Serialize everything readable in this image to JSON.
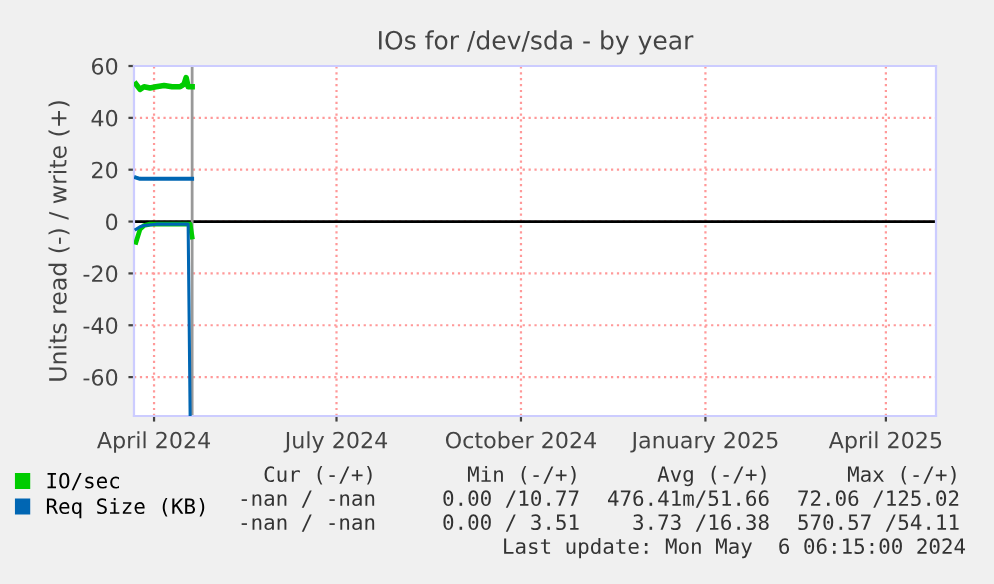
{
  "chart_data": {
    "type": "line",
    "title": "IOs for /dev/sda - by year",
    "ylabel": "Units read (-) / write (+)",
    "xlim": [
      "2024-03-22",
      "2025-04-26"
    ],
    "ylim": [
      -75,
      60
    ],
    "xticks": [
      {
        "value": "2024-04-01",
        "label": "April 2024"
      },
      {
        "value": "2024-07-01",
        "label": "July 2024"
      },
      {
        "value": "2024-10-01",
        "label": "October 2024"
      },
      {
        "value": "2025-01-01",
        "label": "January 2025"
      },
      {
        "value": "2025-04-01",
        "label": "April 2025"
      }
    ],
    "yticks": [
      -60,
      -40,
      -20,
      0,
      20,
      40,
      60
    ],
    "grid": true,
    "legend": "bottom left",
    "line_style": "solid",
    "marker": "none",
    "series": [
      {
        "name": "IO/sec",
        "color": "#00cc00",
        "x": [
          "2024-03-23",
          "2024-03-25",
          "2024-03-27",
          "2024-03-30",
          "2024-04-02",
          "2024-04-06",
          "2024-04-10",
          "2024-04-14",
          "2024-04-16",
          "2024-04-17",
          "2024-04-18",
          "2024-04-20"
        ],
        "values": [
          53,
          51,
          52,
          51.5,
          52,
          52.5,
          52,
          52,
          53,
          55.5,
          52,
          52
        ]
      },
      {
        "color": "#00cc00",
        "x": [
          "2024-03-23",
          "2024-03-25",
          "2024-03-27",
          "2024-03-30",
          "2024-04-02",
          "2024-04-10",
          "2024-04-18",
          "2024-04-19",
          "2024-04-20"
        ],
        "values": [
          -8,
          -3,
          -1.5,
          -1,
          -1,
          -1,
          -1,
          -1,
          -6
        ]
      },
      {
        "name": "Req Size (KB)",
        "color": "#0066b3",
        "x": [
          "2024-03-23",
          "2024-03-25",
          "2024-03-30",
          "2024-04-06",
          "2024-04-12",
          "2024-04-18",
          "2024-04-20"
        ],
        "values": [
          17,
          16.5,
          16.5,
          16.5,
          16.5,
          16.5,
          16.5
        ]
      },
      {
        "color": "#0066b3",
        "x": [
          "2024-03-23",
          "2024-03-25",
          "2024-03-27",
          "2024-04-02",
          "2024-04-10",
          "2024-04-18",
          "2024-04-19"
        ],
        "values": [
          -3,
          -2,
          -1.5,
          -1,
          -1,
          -1,
          -75
        ]
      }
    ],
    "ref_lines": [
      {
        "axis": "y",
        "value": 0,
        "color": "#000000"
      },
      {
        "axis": "x",
        "value": "2024-04-20",
        "color": "#999999"
      }
    ],
    "annotations": [
      "Cur (-/+)",
      "Min (-/+)",
      "Avg (-/+)",
      "Max (-/+)",
      "-nan / -nan",
      "0.00 /10.77",
      "476.41m/51.66",
      "72.06 /125.02",
      "-nan / -nan",
      "0.00 / 3.51",
      "3.73 /16.38",
      "570.57 /54.11",
      "Last update: Mon May  6 06:15:00 2024"
    ]
  }
}
